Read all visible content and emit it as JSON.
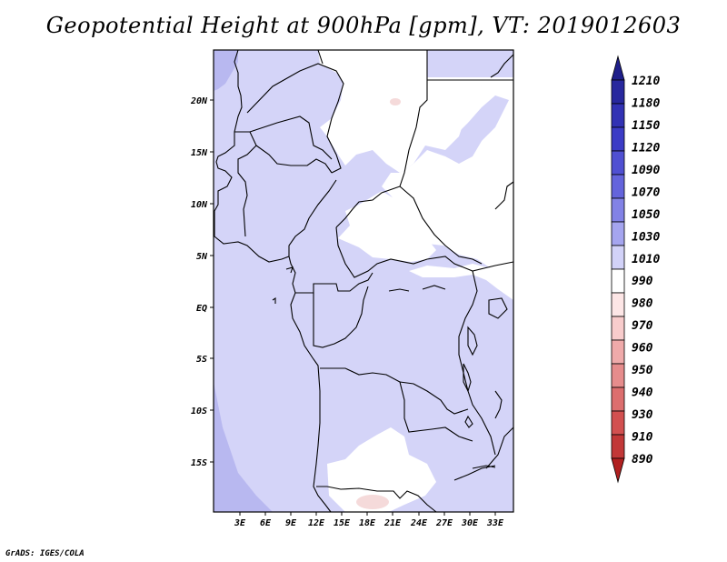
{
  "title": "Geopotential Height at 900hPa [gpm], VT: 2019012603",
  "credit": "GrADS: IGES/COLA",
  "axes": {
    "x_ticks": [
      "3E",
      "6E",
      "9E",
      "12E",
      "15E",
      "18E",
      "21E",
      "24E",
      "27E",
      "30E",
      "33E"
    ],
    "y_ticks": [
      "20N",
      "15N",
      "10N",
      "5N",
      "EQ",
      "5S",
      "10S",
      "15S"
    ]
  },
  "colorbar": {
    "levels": [
      "1210",
      "1180",
      "1150",
      "1120",
      "1090",
      "1070",
      "1050",
      "1030",
      "1010",
      "990",
      "980",
      "970",
      "960",
      "950",
      "940",
      "930",
      "910",
      "890"
    ],
    "colors": [
      "#1f1f8a",
      "#28289e",
      "#3232b4",
      "#3c3cc6",
      "#5050d2",
      "#6464dc",
      "#8282e6",
      "#a5a5ef",
      "#d2d2f8",
      "#ffffff",
      "#fde6e6",
      "#f8cccc",
      "#efaaaa",
      "#e68c8c",
      "#dc6e6e",
      "#d25050",
      "#c23838",
      "#b02020"
    ]
  },
  "field_colors": {
    "lowland": "#d4d4f8",
    "low_pocket": "#f5dada",
    "high_plateau": "#ffffff",
    "ocean_edge": "#b8b8f0"
  }
}
